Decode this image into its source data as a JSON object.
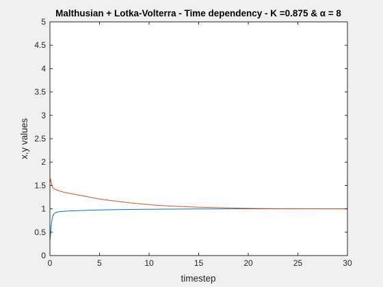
{
  "chart_data": {
    "type": "line",
    "title": "Malthusian + Lotka-Volterra - Time dependency - K =0.875 & α = 8",
    "xlabel": "timestep",
    "ylabel": "x,y values",
    "xlim": [
      0,
      30
    ],
    "ylim": [
      0,
      5
    ],
    "xticks": [
      0,
      5,
      10,
      15,
      20,
      25,
      30
    ],
    "yticks": [
      0,
      0.5,
      1,
      1.5,
      2,
      2.5,
      3,
      3.5,
      4,
      4.5,
      5
    ],
    "grid": false,
    "series": [
      {
        "color": "#0072BD",
        "x": [
          0,
          0.05,
          0.1,
          0.2,
          0.3,
          0.4,
          0.5,
          0.7,
          1,
          1.5,
          2,
          3,
          4,
          5,
          6,
          8,
          10,
          12,
          15,
          18,
          20,
          22,
          25,
          28,
          30
        ],
        "y": [
          0.3,
          0.42,
          0.58,
          0.76,
          0.85,
          0.89,
          0.91,
          0.93,
          0.94,
          0.95,
          0.955,
          0.963,
          0.97,
          0.975,
          0.98,
          0.987,
          0.991,
          0.994,
          0.997,
          0.999,
          1.0,
          1.0,
          1.0,
          1.0,
          1.0
        ]
      },
      {
        "color": "#D95319",
        "x": [
          0,
          0.05,
          0.1,
          0.2,
          0.3,
          0.5,
          0.7,
          1,
          1.5,
          2,
          3,
          4,
          5,
          6,
          8,
          10,
          12,
          15,
          18,
          20,
          22,
          25,
          28,
          30
        ],
        "y": [
          1.55,
          1.65,
          1.6,
          1.5,
          1.45,
          1.42,
          1.4,
          1.38,
          1.35,
          1.33,
          1.29,
          1.25,
          1.21,
          1.18,
          1.13,
          1.09,
          1.06,
          1.035,
          1.02,
          1.01,
          1.005,
          1.002,
          1.0,
          1.0
        ]
      }
    ]
  }
}
